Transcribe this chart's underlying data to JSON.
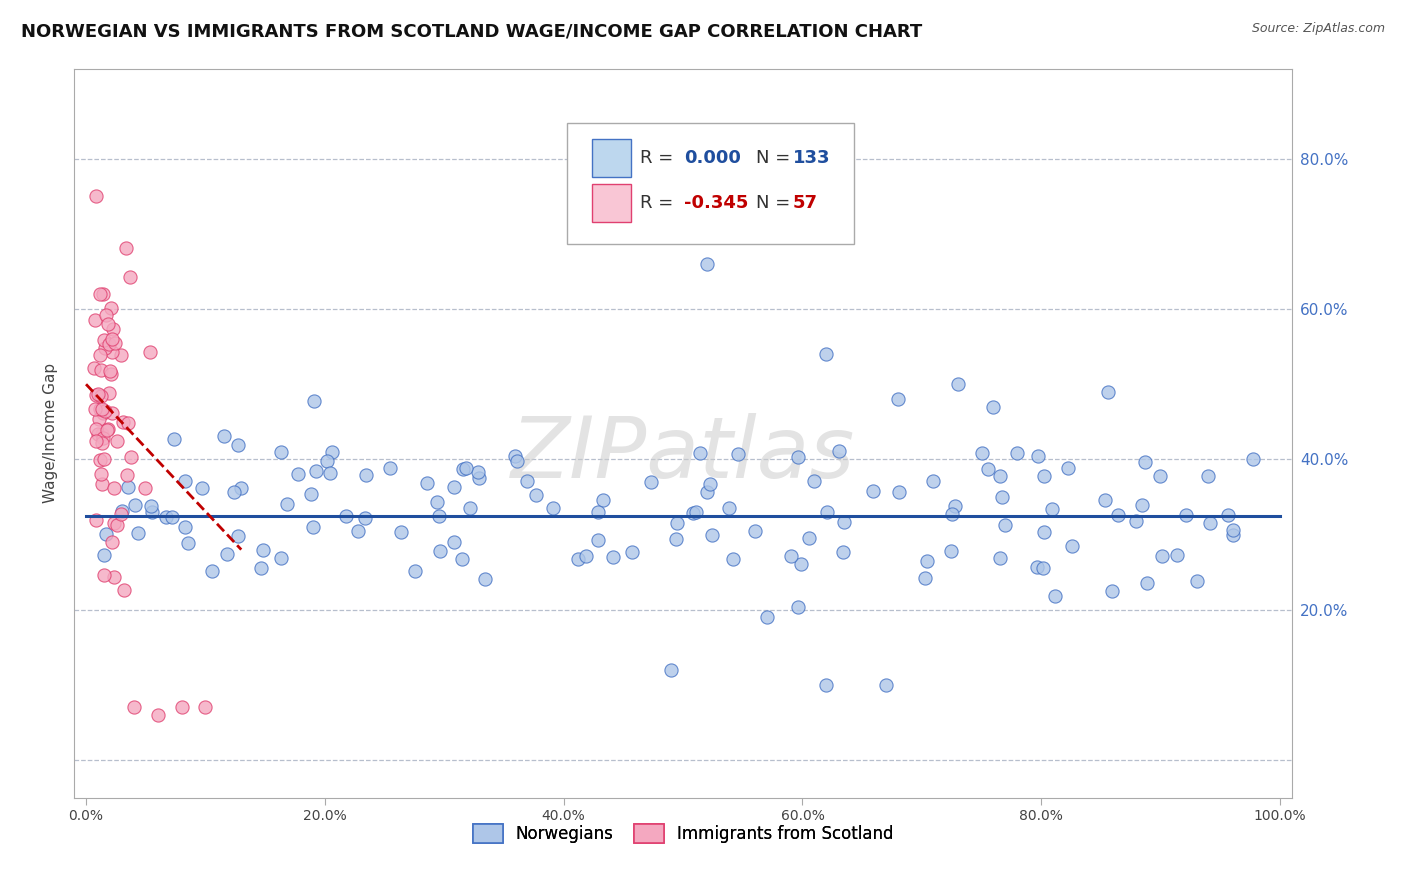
{
  "title": "NORWEGIAN VS IMMIGRANTS FROM SCOTLAND WAGE/INCOME GAP CORRELATION CHART",
  "source": "Source: ZipAtlas.com",
  "ylabel": "Wage/Income Gap",
  "xlabel": "",
  "xlim": [
    -0.01,
    1.01
  ],
  "ylim": [
    -0.05,
    0.92
  ],
  "yticks": [
    0.0,
    0.2,
    0.4,
    0.6,
    0.8
  ],
  "ytick_labels_right": [
    "",
    "20.0%",
    "40.0%",
    "60.0%",
    "80.0%"
  ],
  "xticks": [
    0.0,
    0.2,
    0.4,
    0.6,
    0.8,
    1.0
  ],
  "xtick_labels": [
    "0.0%",
    "20.0%",
    "40.0%",
    "60.0%",
    "80.0%",
    "100.0%"
  ],
  "norwegian_color": "#aec6e8",
  "scottish_color": "#f4a8c0",
  "norwegian_edge": "#4472c4",
  "scottish_edge": "#e04070",
  "trend_norwegian_color": "#1f4e9e",
  "trend_scottish_color": "#c00000",
  "legend_box_norwegian": "#bdd7ee",
  "legend_box_scottish": "#f9c6d5",
  "R_norwegian": 0.0,
  "N_norwegian": 133,
  "R_scottish": -0.345,
  "N_scottish": 57,
  "watermark": "ZIPatlas",
  "background_color": "#ffffff",
  "grid_color": "#b0b8c8",
  "title_fontsize": 13,
  "axis_label_fontsize": 11,
  "tick_fontsize": 10,
  "legend_fontsize": 13,
  "nor_trend_y": 0.325,
  "sco_trend_x0": 0.0,
  "sco_trend_y0": 0.5,
  "sco_trend_x1": 0.13,
  "sco_trend_y1": 0.28
}
